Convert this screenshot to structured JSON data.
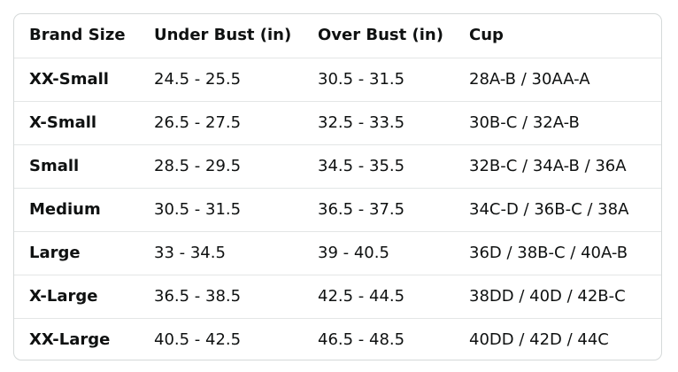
{
  "table": {
    "header": [
      "Brand Size",
      "Under Bust (in)",
      "Over Bust (in)",
      "Cup"
    ],
    "rows": [
      [
        "XX-Small",
        "24.5 - 25.5",
        "30.5 - 31.5",
        "28A-B / 30AA-A"
      ],
      [
        "X-Small",
        "26.5 - 27.5",
        "32.5 - 33.5",
        "30B-C / 32A-B"
      ],
      [
        "Small",
        "28.5 - 29.5",
        "34.5 - 35.5",
        "32B-C / 34A-B / 36A"
      ],
      [
        "Medium",
        "30.5 - 31.5",
        "36.5 - 37.5",
        "34C-D / 36B-C / 38A"
      ],
      [
        "Large",
        "33 - 34.5",
        "39 - 40.5",
        "36D / 38B-C / 40A-B"
      ],
      [
        "X-Large",
        "36.5 - 38.5",
        "42.5 - 44.5",
        "38DD / 40D / 42B-C"
      ],
      [
        "XX-Large",
        "40.5 - 42.5",
        "46.5 - 48.5",
        "40DD / 42D / 44C"
      ]
    ]
  }
}
